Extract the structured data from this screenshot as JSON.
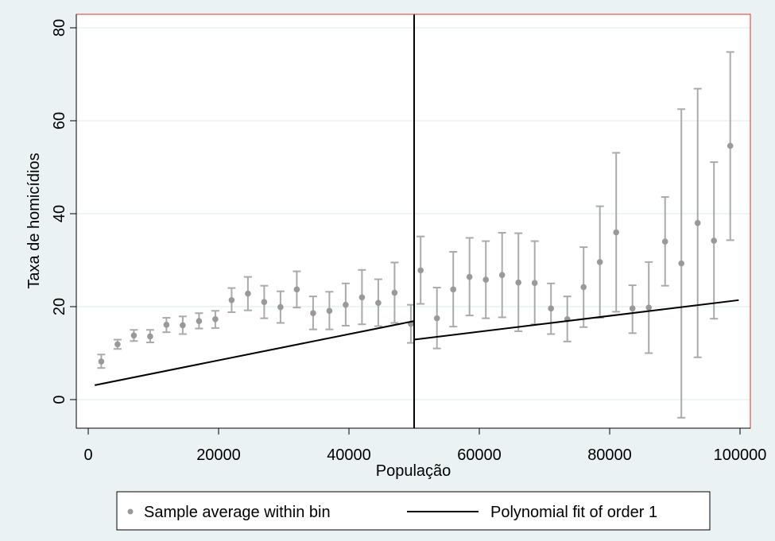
{
  "chart_data": {
    "type": "scatter",
    "title": "",
    "xlabel": "População",
    "ylabel": "Taxa de homicídios",
    "xlim": [
      0,
      100000
    ],
    "ylim": [
      -6,
      81
    ],
    "x_ticks": [
      0,
      20000,
      40000,
      60000,
      80000,
      100000
    ],
    "x_tick_labels": [
      "0",
      "20000",
      "40000",
      "60000",
      "80000",
      "100000"
    ],
    "y_ticks": [
      0,
      20,
      40,
      60,
      80
    ],
    "y_tick_labels": [
      "0",
      "20",
      "40",
      "60",
      "80"
    ],
    "grid": true,
    "cutoff_x": 50000,
    "colors": {
      "background": "#eaf2f3",
      "plot_background": "#ffffff",
      "plot_border": "#e0332f",
      "grid": "#e3eeef",
      "points": "#999999",
      "error_bars": "#aaaaaa",
      "fit_line": "#000000"
    },
    "legend": {
      "placement": "bottom",
      "entries": [
        "Sample average within bin",
        "Polynomial fit of order 1"
      ]
    },
    "series": [
      {
        "name": "Sample average within bin",
        "x": [
          2000,
          4500,
          7000,
          9500,
          12000,
          14500,
          17000,
          19500,
          22000,
          24500,
          27000,
          29500,
          32000,
          34500,
          37000,
          39500,
          42000,
          44500,
          47000,
          49500,
          51000,
          53500,
          56000,
          58500,
          61000,
          63500,
          66000,
          68500,
          71000,
          73500,
          76000,
          78500,
          81000,
          83500,
          86000,
          88500,
          91000,
          93500,
          96000,
          98500
        ],
        "y": [
          8.2,
          11.9,
          13.8,
          13.6,
          16.1,
          16.0,
          16.9,
          17.3,
          21.4,
          22.8,
          21.0,
          19.9,
          23.7,
          18.6,
          19.1,
          20.4,
          22.0,
          20.8,
          23.0,
          16.3,
          27.8,
          17.5,
          23.7,
          26.4,
          25.8,
          26.8,
          25.2,
          25.1,
          19.6,
          17.3,
          24.2,
          29.6,
          36.0,
          19.6,
          19.8,
          34.0,
          29.3,
          38.0,
          34.2,
          54.6
        ],
        "y_low": [
          6.8,
          10.9,
          12.6,
          12.3,
          14.5,
          14.1,
          15.3,
          15.4,
          18.8,
          19.2,
          17.5,
          16.5,
          19.8,
          15.1,
          15.1,
          15.9,
          16.2,
          15.8,
          16.5,
          12.2,
          20.6,
          11.0,
          15.7,
          18.1,
          17.5,
          17.7,
          14.7,
          16.2,
          14.1,
          12.5,
          15.6,
          17.6,
          18.9,
          14.3,
          10.0,
          24.5,
          -3.9,
          9.1,
          17.4,
          34.3
        ],
        "y_high": [
          9.7,
          12.9,
          15.0,
          15.0,
          17.6,
          17.9,
          18.6,
          19.1,
          24.0,
          26.4,
          24.5,
          23.3,
          27.6,
          22.2,
          23.2,
          25.0,
          27.9,
          25.9,
          29.5,
          20.4,
          35.1,
          24.1,
          31.8,
          34.8,
          34.1,
          35.9,
          35.8,
          34.1,
          25.0,
          22.2,
          32.8,
          41.6,
          53.1,
          24.6,
          29.6,
          43.6,
          62.5,
          66.9,
          51.1,
          74.8
        ]
      },
      {
        "name": "Polynomial fit of order 1",
        "segments": [
          {
            "x": [
              1000,
              50000
            ],
            "y": [
              3.1,
              16.9
            ]
          },
          {
            "x": [
              50000,
              99800
            ],
            "y": [
              12.9,
              21.4
            ]
          }
        ]
      }
    ]
  }
}
